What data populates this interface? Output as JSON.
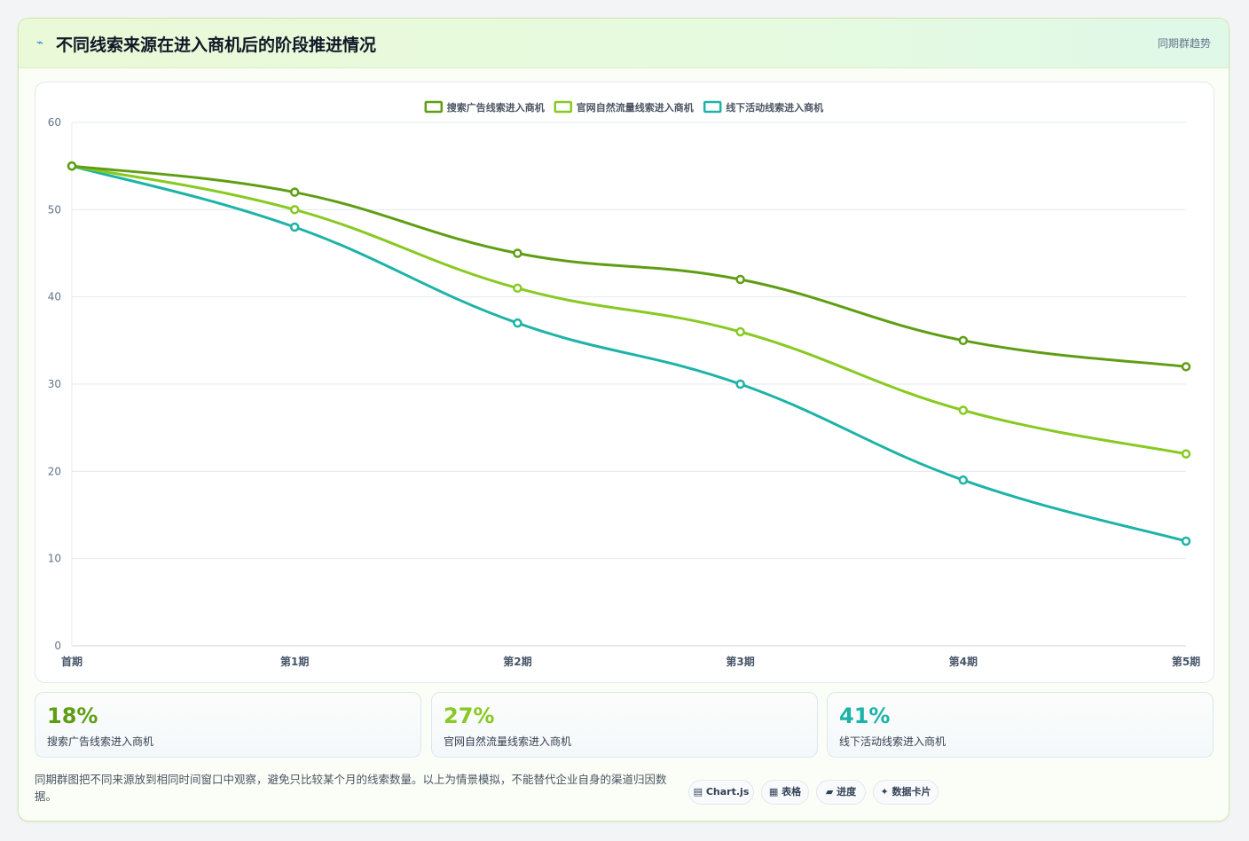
{
  "header": {
    "icon": "lightning-icon",
    "title": "不同线索来源在进入商机后的阶段推进情况",
    "badge": "同期群趋势"
  },
  "chart_data": {
    "type": "line",
    "categories": [
      "首期",
      "第1期",
      "第2期",
      "第3期",
      "第4期",
      "第5期"
    ],
    "ylim": [
      0,
      60
    ],
    "yticks": [
      0,
      10,
      20,
      30,
      40,
      50,
      60
    ],
    "grid": true,
    "legend_position": "top-center",
    "series": [
      {
        "name": "搜索广告线索进入商机",
        "color": "#5f9e14",
        "values": [
          55,
          52,
          45,
          42,
          35,
          32
        ]
      },
      {
        "name": "官网自然流量线索进入商机",
        "color": "#88c922",
        "values": [
          55,
          50,
          41,
          36,
          27,
          22
        ]
      },
      {
        "name": "线下活动线索进入商机",
        "color": "#1db3a7",
        "values": [
          55,
          48,
          37,
          30,
          19,
          12
        ]
      }
    ]
  },
  "stats": [
    {
      "value": "18%",
      "label": "搜索广告线索进入商机",
      "color": "#5f9e14"
    },
    {
      "value": "27%",
      "label": "官网自然流量线索进入商机",
      "color": "#88c922"
    },
    {
      "value": "41%",
      "label": "线下活动线索进入商机",
      "color": "#1db3a7"
    }
  ],
  "note": "同期群图把不同来源放到相同时间窗口中观察，避免只比较某个月的线索数量。以上为情景模拟，不能替代企业自身的渠道归因数据。",
  "chips": [
    {
      "icon": "▤",
      "label": "Chart.js"
    },
    {
      "icon": "▦",
      "label": "表格"
    },
    {
      "icon": "▰",
      "label": "进度"
    },
    {
      "icon": "✦",
      "label": "数据卡片"
    }
  ]
}
